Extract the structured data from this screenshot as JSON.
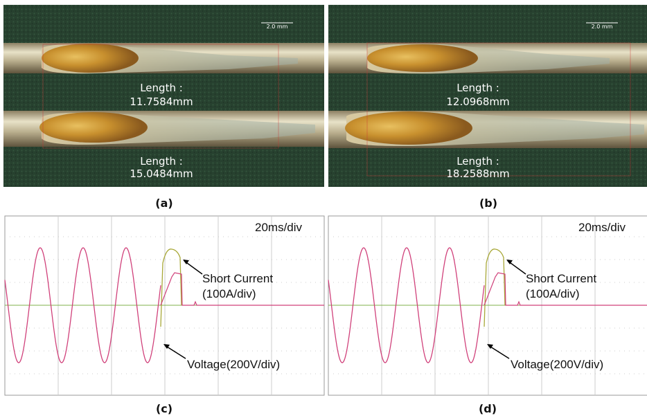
{
  "panels": [
    {
      "label": "(a)",
      "scale_bar": "2.0 mm",
      "measurements": [
        {
          "caption": "Length :",
          "value": "11.7584mm"
        },
        {
          "caption": "Length :",
          "value": "15.0484mm"
        }
      ]
    },
    {
      "label": "(b)",
      "scale_bar": "2.0 mm",
      "measurements": [
        {
          "caption": "Length :",
          "value": "12.0968mm"
        },
        {
          "caption": "Length :",
          "value": "18.2588mm"
        }
      ]
    }
  ],
  "scopes": [
    {
      "label": "(c)",
      "timebase": "20ms/div",
      "current_label": "Short Current",
      "current_scale": "(100A/div)",
      "voltage_label": "Voltage(200V/div)"
    },
    {
      "label": "(d)",
      "timebase": "20ms/div",
      "current_label": "Short Current",
      "current_scale": "(100A/div)",
      "voltage_label": "Voltage(200V/div)"
    }
  ]
}
